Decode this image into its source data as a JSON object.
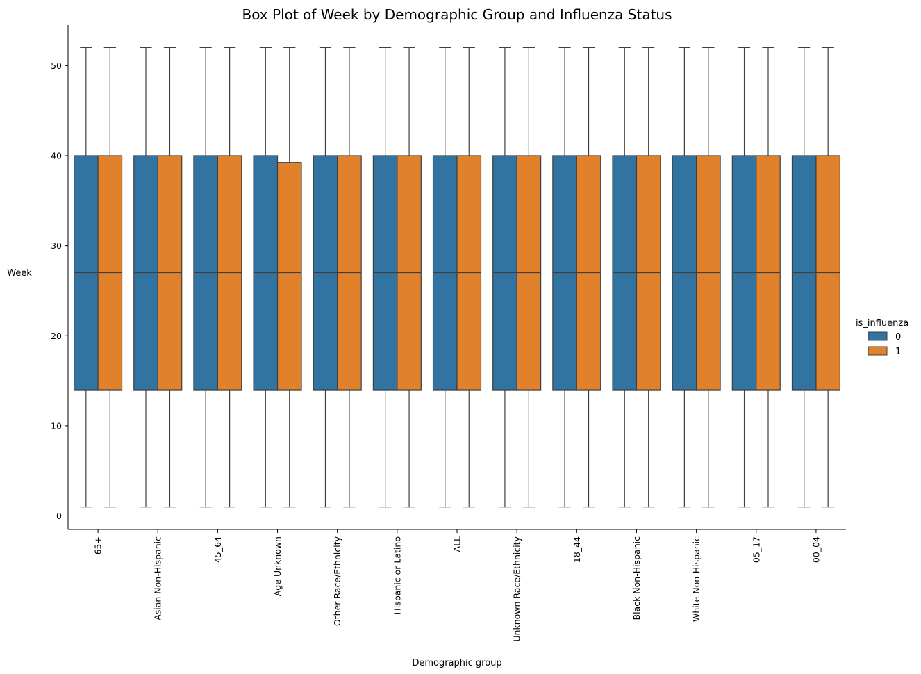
{
  "chart_data": {
    "type": "box",
    "title": "Box Plot of Week by Demographic Group and Influenza Status",
    "xlabel": "Demographic group",
    "ylabel": "Week",
    "ylim": [
      -1.5,
      54.5
    ],
    "yticks": [
      0,
      10,
      20,
      30,
      40,
      50
    ],
    "categories": [
      "65+",
      "Asian Non-Hispanic",
      "45_64",
      "Age Unknown",
      "Other Race/Ethnicity",
      "Hispanic or Latino",
      "ALL",
      "Unknown Race/Ethnicity",
      "18_44",
      "Black Non-Hispanic",
      "White Non-Hispanic",
      "05_17",
      "00_04"
    ],
    "legend": {
      "title": "is_influenza",
      "position": "right",
      "entries": [
        "0",
        "1"
      ]
    },
    "series": [
      {
        "name": "0",
        "color": "#3274a1",
        "boxes": [
          {
            "min": 1,
            "q1": 14,
            "median": 27,
            "q3": 40,
            "max": 52
          },
          {
            "min": 1,
            "q1": 14,
            "median": 27,
            "q3": 40,
            "max": 52
          },
          {
            "min": 1,
            "q1": 14,
            "median": 27,
            "q3": 40,
            "max": 52
          },
          {
            "min": 1,
            "q1": 14,
            "median": 27,
            "q3": 40,
            "max": 52
          },
          {
            "min": 1,
            "q1": 14,
            "median": 27,
            "q3": 40,
            "max": 52
          },
          {
            "min": 1,
            "q1": 14,
            "median": 27,
            "q3": 40,
            "max": 52
          },
          {
            "min": 1,
            "q1": 14,
            "median": 27,
            "q3": 40,
            "max": 52
          },
          {
            "min": 1,
            "q1": 14,
            "median": 27,
            "q3": 40,
            "max": 52
          },
          {
            "min": 1,
            "q1": 14,
            "median": 27,
            "q3": 40,
            "max": 52
          },
          {
            "min": 1,
            "q1": 14,
            "median": 27,
            "q3": 40,
            "max": 52
          },
          {
            "min": 1,
            "q1": 14,
            "median": 27,
            "q3": 40,
            "max": 52
          },
          {
            "min": 1,
            "q1": 14,
            "median": 27,
            "q3": 40,
            "max": 52
          },
          {
            "min": 1,
            "q1": 14,
            "median": 27,
            "q3": 40,
            "max": 52
          }
        ]
      },
      {
        "name": "1",
        "color": "#e1812c",
        "boxes": [
          {
            "min": 1,
            "q1": 14,
            "median": 27,
            "q3": 40,
            "max": 52
          },
          {
            "min": 1,
            "q1": 14,
            "median": 27,
            "q3": 40,
            "max": 52
          },
          {
            "min": 1,
            "q1": 14,
            "median": 27,
            "q3": 40,
            "max": 52
          },
          {
            "min": 1,
            "q1": 14,
            "median": 27,
            "q3": 39.25,
            "max": 52
          },
          {
            "min": 1,
            "q1": 14,
            "median": 27,
            "q3": 40,
            "max": 52
          },
          {
            "min": 1,
            "q1": 14,
            "median": 27,
            "q3": 40,
            "max": 52
          },
          {
            "min": 1,
            "q1": 14,
            "median": 27,
            "q3": 40,
            "max": 52
          },
          {
            "min": 1,
            "q1": 14,
            "median": 27,
            "q3": 40,
            "max": 52
          },
          {
            "min": 1,
            "q1": 14,
            "median": 27,
            "q3": 40,
            "max": 52
          },
          {
            "min": 1,
            "q1": 14,
            "median": 27,
            "q3": 40,
            "max": 52
          },
          {
            "min": 1,
            "q1": 14,
            "median": 27,
            "q3": 40,
            "max": 52
          },
          {
            "min": 1,
            "q1": 14,
            "median": 27,
            "q3": 40,
            "max": 52
          },
          {
            "min": 1,
            "q1": 14,
            "median": 27,
            "q3": 40,
            "max": 52
          }
        ]
      }
    ]
  }
}
